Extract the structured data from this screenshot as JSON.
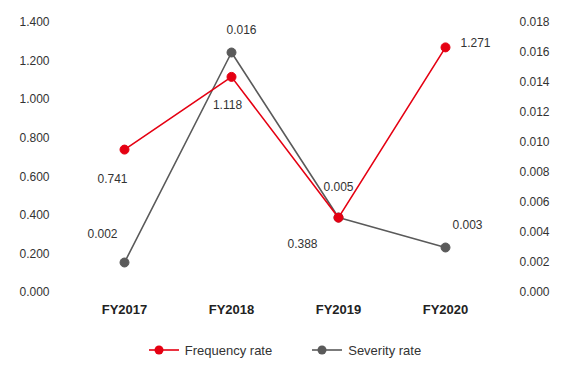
{
  "chart_data": {
    "type": "line",
    "categories": [
      "FY2017",
      "FY2018",
      "FY2019",
      "FY2020"
    ],
    "series": [
      {
        "name": "Frequency rate",
        "color": "#e50012",
        "marker": "circle",
        "values": [
          0.741,
          1.118,
          0.388,
          1.271
        ]
      },
      {
        "name": "Severity rate",
        "color": "#5a5a5a",
        "marker": "circle",
        "axis": "y2",
        "values": [
          0.002,
          0.016,
          0.005,
          0.003
        ]
      }
    ],
    "ylim": [
      0,
      1.4
    ],
    "yticks": [
      {
        "value": 0,
        "label": "0.000"
      },
      {
        "value": 0.2,
        "label": "0.200"
      },
      {
        "value": 0.4,
        "label": "0.400"
      },
      {
        "value": 0.6,
        "label": "0.600"
      },
      {
        "value": 0.8,
        "label": "0.800"
      },
      {
        "value": 1.0,
        "label": "1.000"
      },
      {
        "value": 1.2,
        "label": "1.200"
      },
      {
        "value": 1.4,
        "label": "1.400"
      }
    ],
    "y2lim": [
      0,
      0.018
    ],
    "y2ticks": [
      {
        "value": 0,
        "label": "0.000"
      },
      0.002,
      0.004,
      0.006,
      0.008,
      {
        "value": 0.01,
        "label": "0.010"
      },
      0.012,
      0.014,
      0.016,
      0.018
    ],
    "data_labels": true,
    "grid": false,
    "legend": "bottom"
  }
}
